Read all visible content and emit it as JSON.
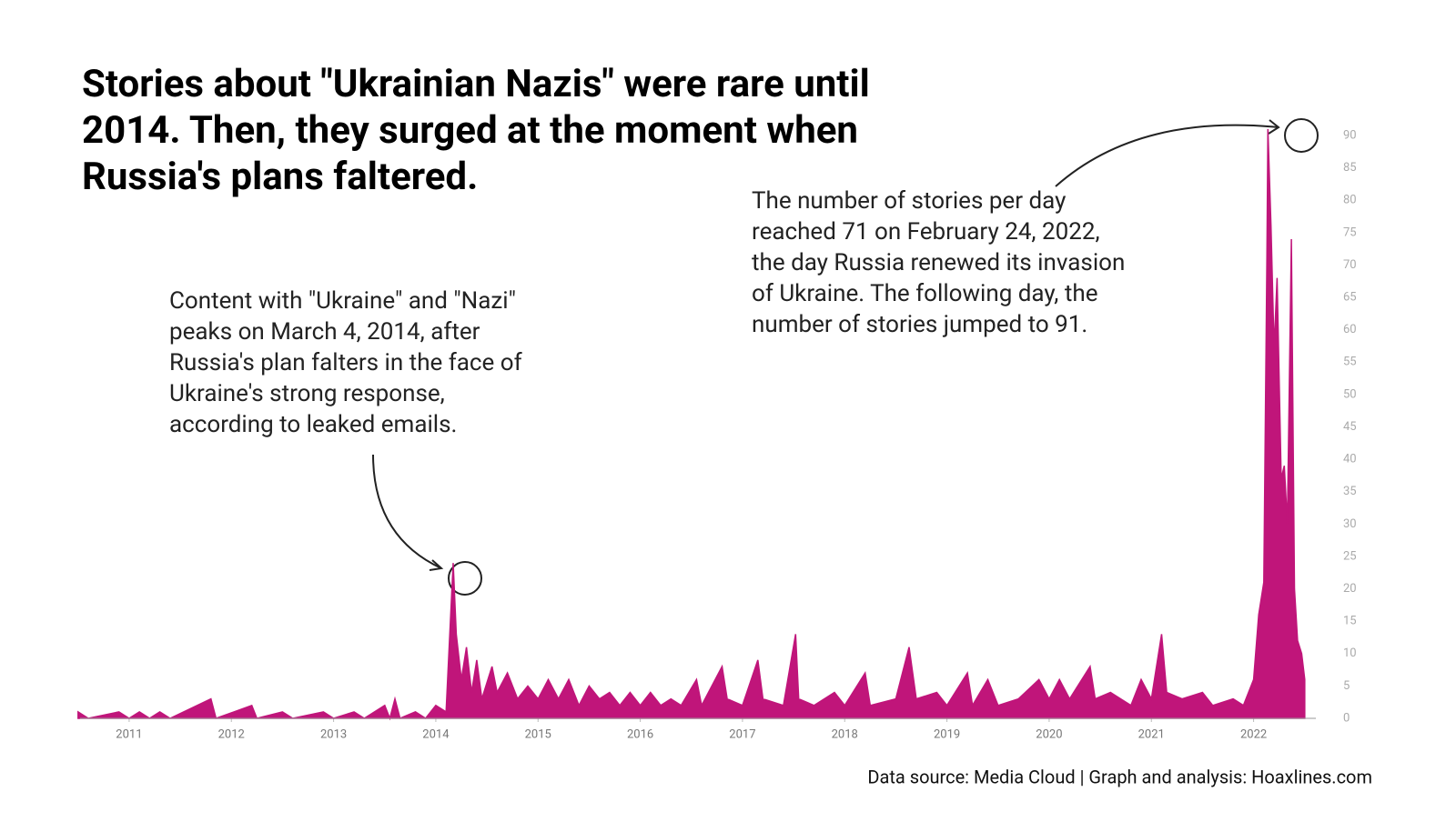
{
  "chart_data": {
    "type": "area",
    "title": [
      "Stories about \"Ukrainian Nazis\" were rare until",
      "2014. Then, they surged at the moment when",
      "Russia's plans faltered."
    ],
    "annotations": [
      [
        "Content with \"Ukraine\" and \"Nazi\"",
        "peaks on March 4, 2014, after",
        "Russia's plan falters in the face of",
        "Ukraine's strong response,",
        "according to leaked emails."
      ],
      [
        "The number of stories per day",
        "reached 71 on February 24, 2022,",
        "the day Russia renewed its invasion",
        "of Ukraine. The following day, the",
        "number of stories jumped to 91."
      ]
    ],
    "source": "Data source: Media Cloud  |  Graph and analysis: Hoaxlines.com",
    "color": "#c0157a",
    "x": [
      2010.5,
      2010.6,
      2010.9,
      2011.0,
      2011.1,
      2011.2,
      2011.3,
      2011.4,
      2011.8,
      2011.85,
      2012.2,
      2012.25,
      2012.5,
      2012.6,
      2012.9,
      2013.0,
      2013.2,
      2013.3,
      2013.5,
      2013.55,
      2013.6,
      2013.65,
      2013.8,
      2013.9,
      2014.0,
      2014.1,
      2014.17,
      2014.2,
      2014.25,
      2014.3,
      2014.35,
      2014.4,
      2014.45,
      2014.55,
      2014.6,
      2014.7,
      2014.8,
      2014.9,
      2015.0,
      2015.1,
      2015.2,
      2015.3,
      2015.4,
      2015.5,
      2015.6,
      2015.7,
      2015.8,
      2015.9,
      2016.0,
      2016.1,
      2016.2,
      2016.3,
      2016.4,
      2016.55,
      2016.6,
      2016.8,
      2016.85,
      2017.0,
      2017.15,
      2017.2,
      2017.4,
      2017.52,
      2017.55,
      2017.7,
      2017.9,
      2018.0,
      2018.2,
      2018.25,
      2018.5,
      2018.63,
      2018.7,
      2018.9,
      2019.0,
      2019.2,
      2019.25,
      2019.4,
      2019.5,
      2019.7,
      2019.9,
      2020.0,
      2020.1,
      2020.2,
      2020.4,
      2020.45,
      2020.6,
      2020.8,
      2020.9,
      2021.0,
      2021.1,
      2021.15,
      2021.3,
      2021.5,
      2021.6,
      2021.8,
      2021.9,
      2022.0,
      2022.05,
      2022.1,
      2022.13,
      2022.14,
      2022.17,
      2022.2,
      2022.23,
      2022.27,
      2022.3,
      2022.33,
      2022.37,
      2022.4,
      2022.43,
      2022.47,
      2022.5
    ],
    "values": [
      1,
      0,
      1,
      0,
      1,
      0,
      1,
      0,
      3,
      0,
      2,
      0,
      1,
      0,
      1,
      0,
      1,
      0,
      2,
      0,
      3,
      0,
      1,
      0,
      2,
      1,
      24,
      13,
      6,
      11,
      4,
      9,
      3,
      8,
      4,
      7,
      3,
      5,
      3,
      6,
      3,
      6,
      2,
      5,
      3,
      4,
      2,
      4,
      2,
      4,
      2,
      3,
      2,
      6,
      2,
      8,
      3,
      2,
      9,
      3,
      2,
      13,
      3,
      2,
      4,
      2,
      7,
      2,
      3,
      11,
      3,
      4,
      2,
      7,
      2,
      6,
      2,
      3,
      6,
      3,
      6,
      3,
      8,
      3,
      4,
      2,
      6,
      3,
      13,
      4,
      3,
      4,
      2,
      3,
      2,
      6,
      16,
      21,
      71,
      91,
      76,
      57,
      68,
      37,
      39,
      30,
      74,
      20,
      12,
      10,
      6
    ],
    "xlim": [
      2010.52,
      2022.52
    ],
    "xticks": [
      2011,
      2012,
      2013,
      2014,
      2015,
      2016,
      2017,
      2018,
      2019,
      2020,
      2021,
      2022
    ],
    "ylim": [
      0,
      90
    ],
    "yticks": [
      0,
      5,
      10,
      15,
      20,
      25,
      30,
      35,
      40,
      45,
      50,
      55,
      60,
      65,
      70,
      75,
      80,
      85,
      90
    ]
  }
}
